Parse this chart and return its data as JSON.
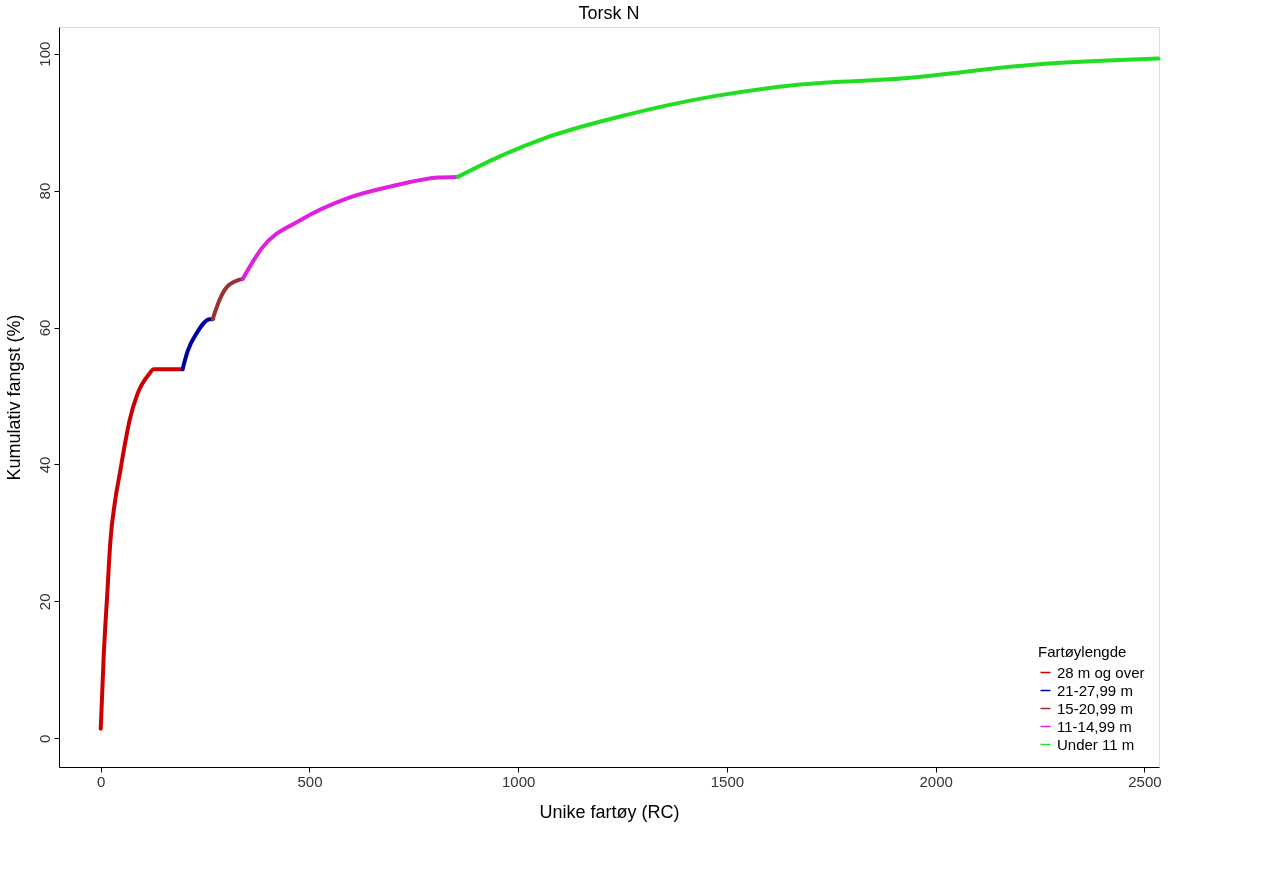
{
  "chart_data": {
    "type": "line",
    "title": "Torsk N",
    "xlabel": "Unike fartøy (RC)",
    "ylabel": "Kumulativ fangst (%)",
    "legend_title": "Fartøylengde",
    "legend": "bottom right",
    "grid": false,
    "xlim": [
      -100,
      2535
    ],
    "ylim": [
      -4.2,
      103.9
    ],
    "xticks": [
      0,
      500,
      1000,
      1500,
      2000,
      2500
    ],
    "yticks": [
      0,
      20,
      40,
      60,
      80,
      100
    ],
    "series": [
      {
        "name": "28 m og over",
        "color": "#cc0000",
        "x": [
          0,
          7,
          16,
          23,
          35,
          46,
          58,
          69,
          88,
          116,
          127,
          196
        ],
        "values": [
          1.4,
          11.9,
          21.5,
          28.7,
          34.9,
          38.8,
          43,
          46.4,
          50.3,
          53.2,
          53.9,
          53.9
        ]
      },
      {
        "name": "21-27,99 m",
        "color": "#0000aa",
        "x": [
          196,
          208,
          231,
          261,
          268
        ],
        "values": [
          53.9,
          56.5,
          59.3,
          61.2,
          61.2
        ]
      },
      {
        "name": "15-20,99 m",
        "color": "#993333",
        "x": [
          268,
          285,
          305,
          340
        ],
        "values": [
          61.2,
          64.1,
          66.1,
          67.1
        ]
      },
      {
        "name": "11-14,99 m",
        "color": "#dd22dd",
        "x": [
          340,
          386,
          479,
          592,
          695,
          809,
          855
        ],
        "values": [
          67.1,
          71.6,
          75.7,
          78.9,
          80.6,
          81.9,
          82.0
        ]
      },
      {
        "name": "Under 11 m",
        "color": "#22dd22",
        "x": [
          855,
          952,
          1056,
          1262,
          1470,
          1675,
          1925,
          2234,
          2534
        ],
        "values": [
          82.0,
          84.9,
          87.5,
          91.1,
          93.8,
          95.5,
          96.4,
          98.4,
          99.3
        ]
      }
    ]
  }
}
